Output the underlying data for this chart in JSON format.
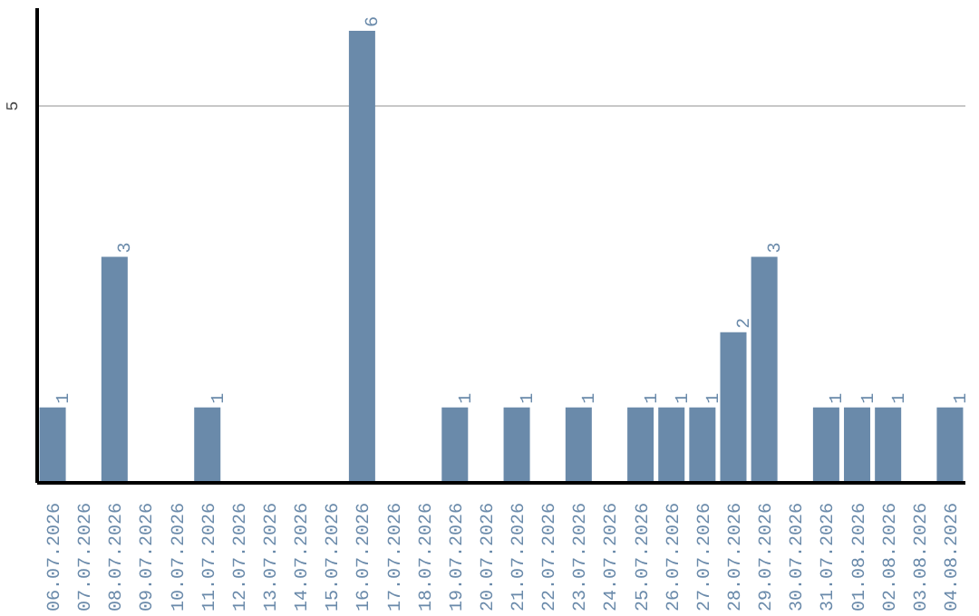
{
  "chart_data": {
    "type": "bar",
    "categories": [
      "06.07.2026",
      "07.07.2026",
      "08.07.2026",
      "09.07.2026",
      "10.07.2026",
      "11.07.2026",
      "12.07.2026",
      "13.07.2026",
      "14.07.2026",
      "15.07.2026",
      "16.07.2026",
      "17.07.2026",
      "18.07.2026",
      "19.07.2026",
      "20.07.2026",
      "21.07.2026",
      "22.07.2026",
      "23.07.2026",
      "24.07.2026",
      "25.07.2026",
      "26.07.2026",
      "27.07.2026",
      "28.07.2026",
      "29.07.2026",
      "30.07.2026",
      "31.07.2026",
      "01.08.2026",
      "02.08.2026",
      "03.08.2026",
      "04.08.2026"
    ],
    "values": [
      1,
      0,
      3,
      0,
      0,
      1,
      0,
      0,
      0,
      0,
      6,
      0,
      0,
      1,
      0,
      1,
      0,
      1,
      0,
      1,
      1,
      1,
      2,
      3,
      0,
      1,
      1,
      1,
      0,
      1
    ],
    "value_labels": [
      "1",
      null,
      "3",
      null,
      null,
      "1",
      null,
      null,
      null,
      null,
      "6",
      null,
      null,
      "1",
      null,
      "1",
      null,
      "1",
      null,
      "1",
      "1",
      "1",
      "2",
      "3",
      null,
      "1",
      "1",
      "1",
      null,
      "1"
    ],
    "color": "#6a8aaa",
    "ylim": [
      0,
      6.3
    ],
    "yticks": [
      5
    ],
    "grid": "y"
  }
}
